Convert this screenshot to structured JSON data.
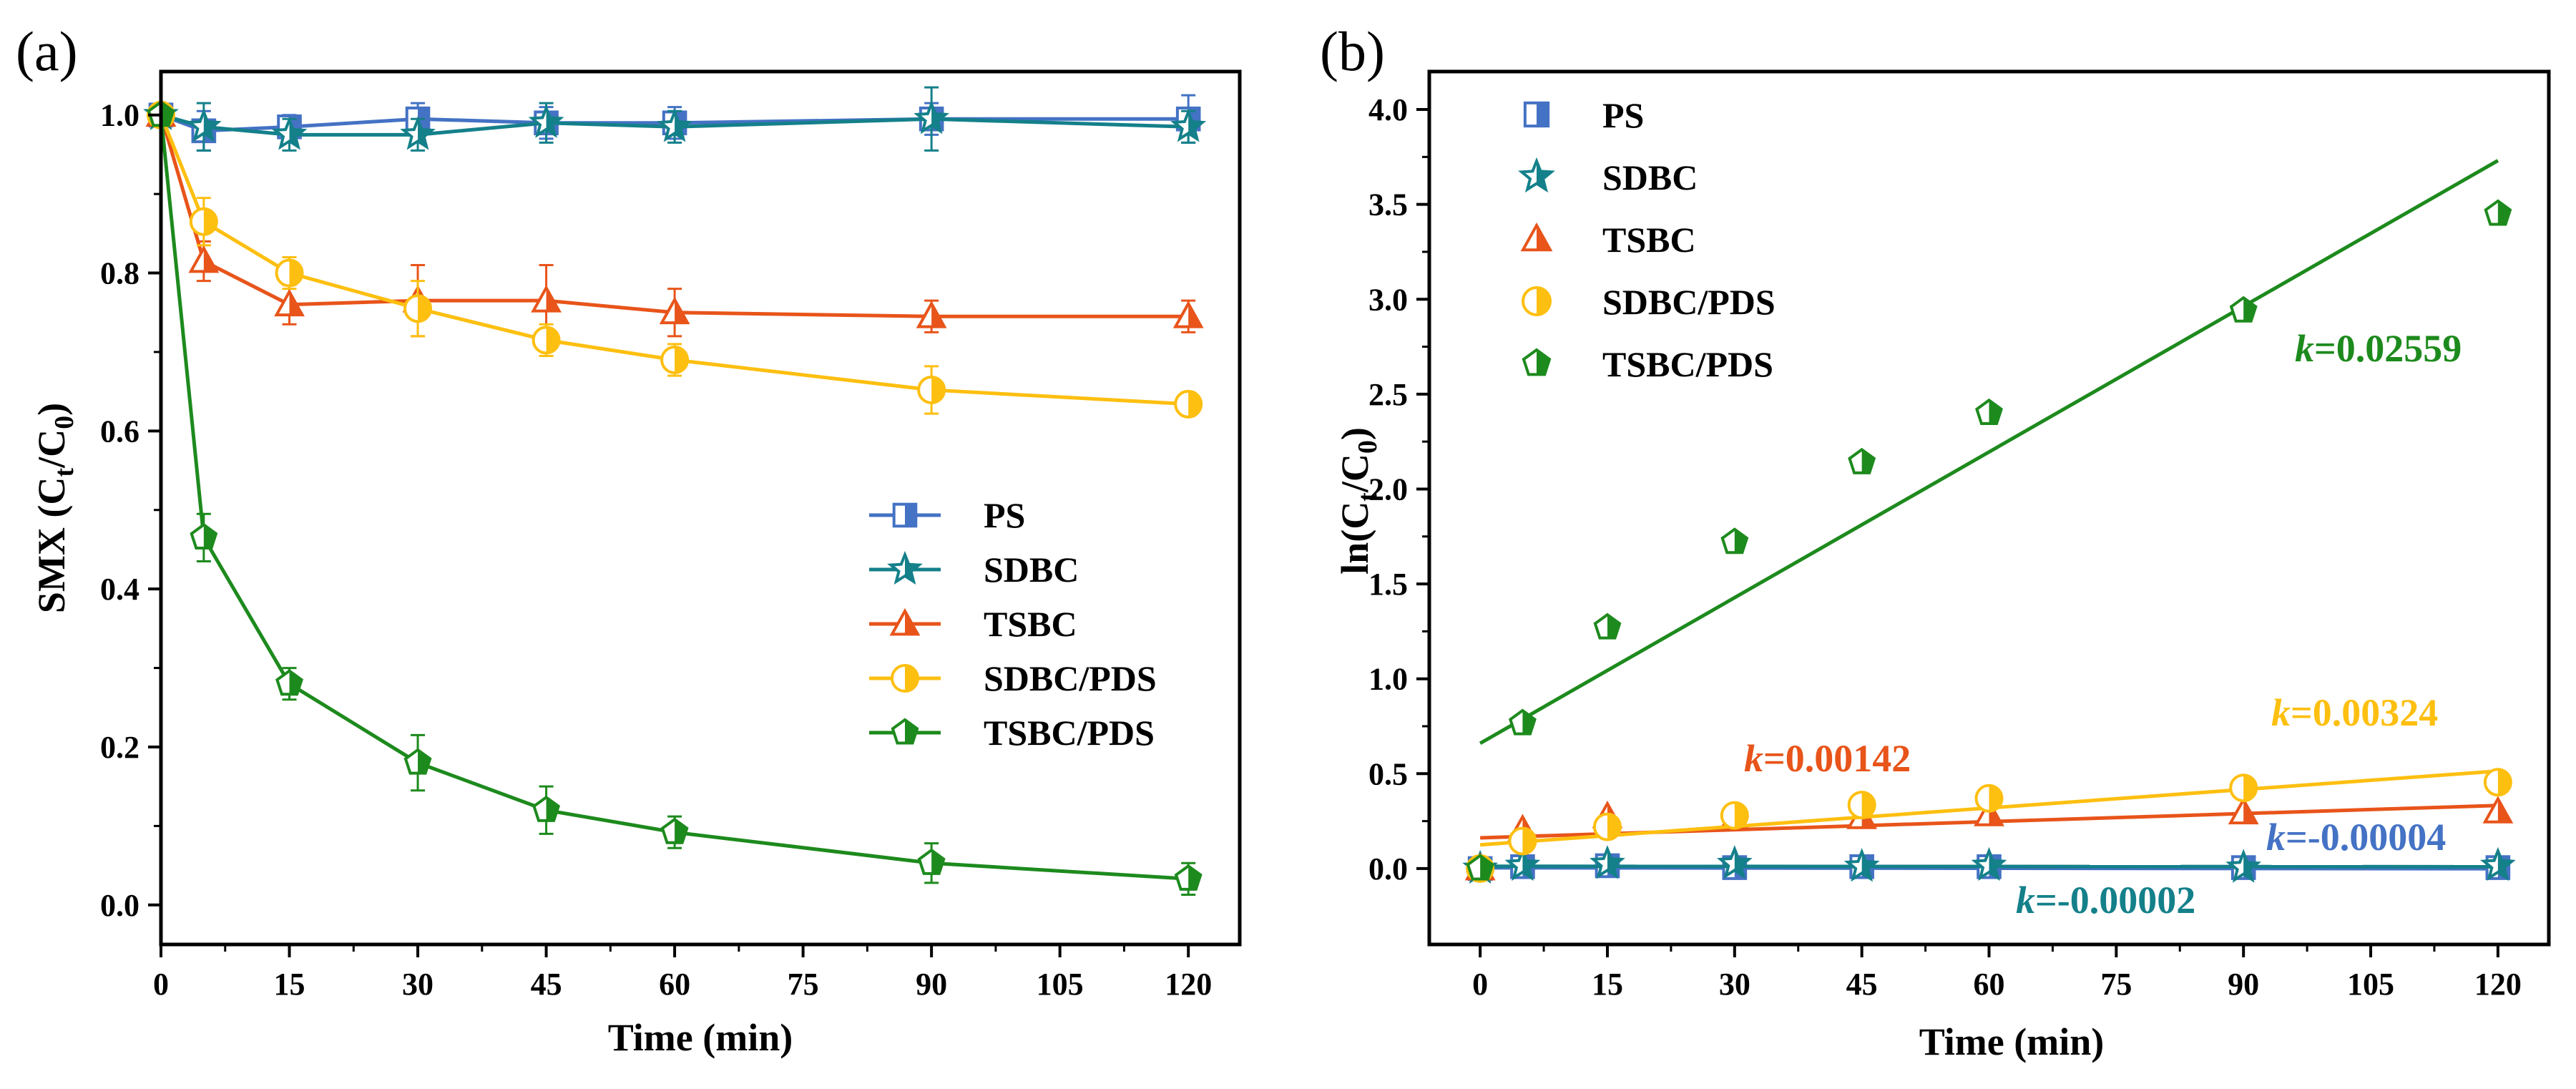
{
  "chart_data": [
    {
      "panel": "(a)",
      "type": "line",
      "title": "",
      "xlabel": "Time (min)",
      "ylabel": "SMX (C",
      "ylabel_sub1": "t",
      "ylabel_mid": "/C",
      "ylabel_sub2": "0",
      "ylabel_end": ")",
      "xlim": [
        0,
        126
      ],
      "ylim": [
        -0.05,
        1.055
      ],
      "xticks": [
        0,
        15,
        30,
        45,
        60,
        75,
        90,
        105,
        120
      ],
      "xtick_labels": [
        "0",
        "15",
        "30",
        "45",
        "60",
        "75",
        "90",
        "105",
        "120"
      ],
      "yticks": [
        0.0,
        0.2,
        0.4,
        0.6,
        0.8,
        1.0
      ],
      "ytick_labels": [
        "0.0",
        "0.2",
        "0.4",
        "0.6",
        "0.8",
        "1.0"
      ],
      "legend_position": "center-right",
      "x": [
        0,
        5,
        15,
        30,
        45,
        60,
        90,
        120
      ],
      "series": [
        {
          "name": "PS",
          "color": "#4472c4",
          "marker": "square",
          "values": [
            1.0,
            0.98,
            0.985,
            0.995,
            0.99,
            0.99,
            0.995,
            0.995
          ],
          "errors": [
            0.01,
            0.025,
            0.015,
            0.02,
            0.02,
            0.02,
            0.02,
            0.03
          ]
        },
        {
          "name": "SDBC",
          "color": "#14808a",
          "marker": "star",
          "values": [
            1.0,
            0.985,
            0.975,
            0.975,
            0.99,
            0.985,
            0.995,
            0.985
          ],
          "errors": [
            0.01,
            0.03,
            0.02,
            0.02,
            0.025,
            0.02,
            0.04,
            0.02
          ]
        },
        {
          "name": "TSBC",
          "color": "#e8541a",
          "marker": "triangle",
          "values": [
            1.0,
            0.815,
            0.76,
            0.765,
            0.765,
            0.75,
            0.745,
            0.745
          ],
          "errors": [
            0.01,
            0.025,
            0.025,
            0.045,
            0.045,
            0.03,
            0.02,
            0.02
          ]
        },
        {
          "name": "SDBC/PDS",
          "color": "#fdbf10",
          "marker": "circle",
          "values": [
            1.0,
            0.865,
            0.8,
            0.755,
            0.715,
            0.69,
            0.652,
            0.634
          ],
          "errors": [
            0.01,
            0.03,
            0.02,
            0.035,
            0.02,
            0.02,
            0.03,
            0.015
          ]
        },
        {
          "name": "TSBC/PDS",
          "color": "#1d8a1d",
          "marker": "pentagon",
          "values": [
            1.0,
            0.465,
            0.28,
            0.18,
            0.12,
            0.092,
            0.053,
            0.033
          ],
          "errors": [
            0.01,
            0.03,
            0.02,
            0.035,
            0.03,
            0.02,
            0.025,
            0.02
          ]
        }
      ]
    },
    {
      "panel": "(b)",
      "type": "scatter",
      "title": "",
      "xlabel": "Time (min)",
      "ylabel": "ln(C",
      "ylabel_sub1": "t",
      "ylabel_mid": "/C",
      "ylabel_sub2": "0",
      "ylabel_end": ")",
      "xlim": [
        -6,
        126
      ],
      "ylim": [
        -0.4,
        4.2
      ],
      "xticks": [
        0,
        15,
        30,
        45,
        60,
        75,
        90,
        105,
        120
      ],
      "xtick_labels": [
        "0",
        "15",
        "30",
        "45",
        "60",
        "75",
        "90",
        "105",
        "120"
      ],
      "yticks": [
        0.0,
        0.5,
        1.0,
        1.5,
        2.0,
        2.5,
        3.0,
        3.5,
        4.0
      ],
      "ytick_labels": [
        "0.0",
        "0.5",
        "1.0",
        "1.5",
        "2.0",
        "2.5",
        "3.0",
        "3.5",
        "4.0"
      ],
      "legend_position": "top-left",
      "x": [
        0,
        5,
        15,
        30,
        45,
        60,
        90,
        120
      ],
      "series": [
        {
          "name": "PS",
          "color": "#4472c4",
          "marker": "square",
          "values": [
            0.0,
            0.01,
            0.015,
            0.005,
            0.01,
            0.01,
            0.005,
            0.005
          ],
          "fit": {
            "intercept": 0.004,
            "slope": -4e-05
          },
          "k_text": "=-0.00004"
        },
        {
          "name": "SDBC",
          "color": "#14808a",
          "marker": "star",
          "values": [
            0.0,
            0.015,
            0.025,
            0.025,
            0.01,
            0.015,
            0.005,
            0.015
          ],
          "fit": {
            "intercept": 0.012,
            "slope": -2e-05
          },
          "k_text": "=-0.00002"
        },
        {
          "name": "TSBC",
          "color": "#e8541a",
          "marker": "triangle",
          "values": [
            0.0,
            0.205,
            0.275,
            0.265,
            0.27,
            0.285,
            0.295,
            0.3
          ],
          "fit": {
            "intercept": 0.162,
            "slope": 0.00142
          },
          "k_text": "=0.00142"
        },
        {
          "name": "SDBC/PDS",
          "color": "#fdbf10",
          "marker": "circle",
          "values": [
            0.0,
            0.145,
            0.22,
            0.28,
            0.335,
            0.37,
            0.425,
            0.455
          ],
          "fit": {
            "intercept": 0.125,
            "slope": 0.00324
          },
          "k_text": "=0.00324"
        },
        {
          "name": "TSBC/PDS",
          "color": "#1d8a1d",
          "marker": "pentagon",
          "values": [
            0.0,
            0.765,
            1.27,
            1.72,
            2.14,
            2.4,
            2.94,
            3.45
          ],
          "fit": {
            "intercept": 0.66,
            "slope": 0.02559
          },
          "k_text": "=0.02559"
        }
      ]
    }
  ],
  "k_prefix": "k"
}
